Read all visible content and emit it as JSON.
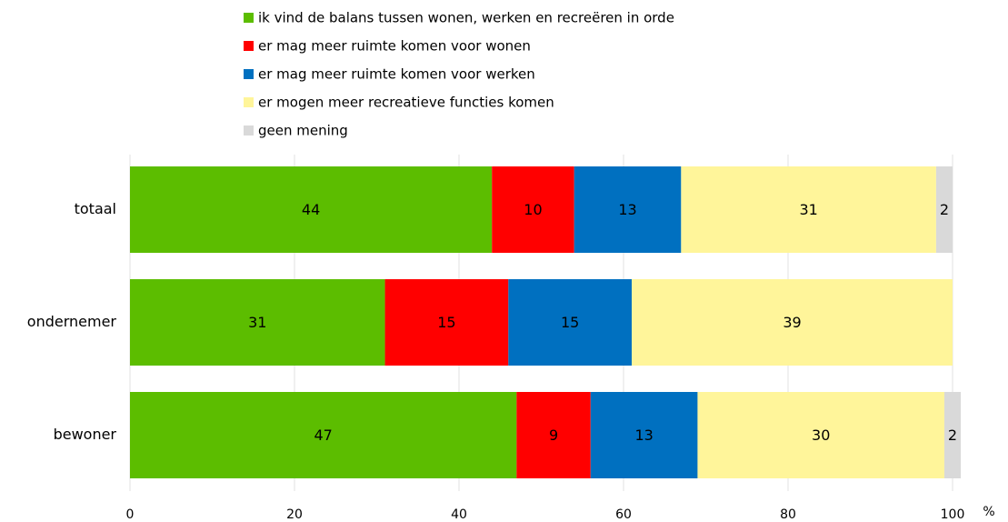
{
  "chart_data": {
    "type": "stacked_barh",
    "categories": [
      "totaal",
      "ondernemer",
      "bewoner"
    ],
    "series": [
      {
        "name": "ik vind de balans tussen wonen, werken en recreëren in orde",
        "color": "#5cbd00",
        "label_color": "#000000",
        "values": [
          44,
          31,
          47
        ]
      },
      {
        "name": "er mag meer ruimte komen voor wonen",
        "color": "#ff0000",
        "label_color": "#000000",
        "values": [
          10,
          15,
          9
        ]
      },
      {
        "name": "er mag meer ruimte komen voor werken",
        "color": "#0070c0",
        "label_color": "#ffffff",
        "values": [
          13,
          15,
          13
        ]
      },
      {
        "name": "er mogen meer recreatieve functies komen",
        "color": "#fff59a",
        "label_color": "#000000",
        "values": [
          31,
          39,
          30
        ]
      },
      {
        "name": "geen mening",
        "color": "#d9d9d9",
        "label_color": "#000000",
        "values": [
          2,
          null,
          2
        ]
      }
    ],
    "xlabel": "%",
    "xlim": [
      0,
      100
    ],
    "xticks": [
      0,
      20,
      40,
      60,
      80,
      100
    ],
    "grid": true
  }
}
